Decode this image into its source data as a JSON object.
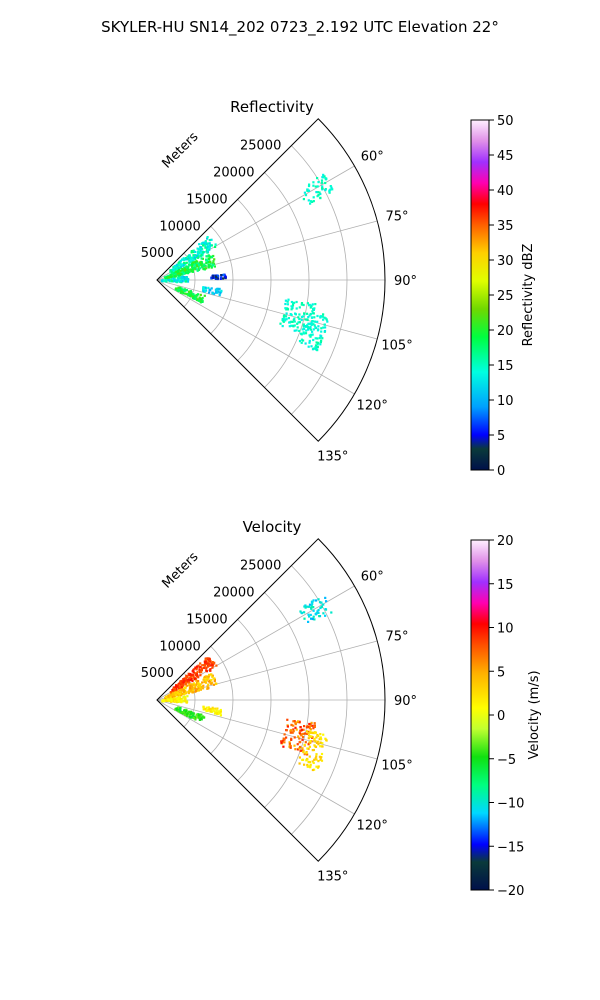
{
  "figure": {
    "title": "SKYLER-HU  SN14_202  0723_2.192 UTC Elevation 22°"
  },
  "chart_data": [
    {
      "type": "polar_sector",
      "title": "Reflectivity",
      "range_label": "Meters",
      "r_max": 30000,
      "r_ticks": [
        5000,
        10000,
        15000,
        20000,
        25000
      ],
      "r_tick_labels": [
        "5000",
        "10000",
        "15000",
        "20000",
        "25000"
      ],
      "theta_range_deg": [
        45,
        135
      ],
      "theta_ticks_deg": [
        60,
        75,
        90,
        105,
        120,
        135
      ],
      "theta_tick_labels": [
        "60°",
        "75°",
        "90°",
        "105°",
        "120°",
        "135°"
      ],
      "grid": true,
      "colorbar": {
        "label": "Reflectivity dBZ",
        "min": 0,
        "max": 50,
        "ticks": [
          0,
          5,
          10,
          15,
          20,
          25,
          30,
          35,
          40,
          45,
          50
        ],
        "tick_labels": [
          "0",
          "5",
          "10",
          "15",
          "20",
          "25",
          "30",
          "35",
          "40",
          "45",
          "50"
        ]
      },
      "echo_regions": [
        {
          "az": [
            48,
            60
          ],
          "range": [
            2000,
            9000
          ],
          "value": [
            11,
            18
          ]
        },
        {
          "az": [
            62,
            76
          ],
          "range": [
            1000,
            8000
          ],
          "value": [
            16,
            22
          ]
        },
        {
          "az": [
            80,
            93
          ],
          "range": [
            500,
            4000
          ],
          "value": [
            10,
            17
          ]
        },
        {
          "az": [
            84,
            88
          ],
          "range": [
            7000,
            9000
          ],
          "value": [
            3,
            8
          ]
        },
        {
          "az": [
            97,
            103
          ],
          "range": [
            6000,
            8500
          ],
          "value": [
            9,
            14
          ]
        },
        {
          "az": [
            107,
            117
          ],
          "range": [
            2500,
            6500
          ],
          "value": [
            17,
            22
          ]
        },
        {
          "az": [
            98,
            110
          ],
          "range": [
            17000,
            21000
          ],
          "value": [
            13,
            16
          ]
        },
        {
          "az": [
            57,
            63
          ],
          "range": [
            22000,
            26000
          ],
          "value": [
            13,
            16
          ]
        },
        {
          "az": [
            101,
            114
          ],
          "range": [
            20000,
            23000
          ],
          "value": [
            13,
            16
          ]
        }
      ]
    },
    {
      "type": "polar_sector",
      "title": "Velocity",
      "range_label": "Meters",
      "r_max": 30000,
      "r_ticks": [
        5000,
        10000,
        15000,
        20000,
        25000
      ],
      "r_tick_labels": [
        "5000",
        "10000",
        "15000",
        "20000",
        "25000"
      ],
      "theta_range_deg": [
        45,
        135
      ],
      "theta_ticks_deg": [
        60,
        75,
        90,
        105,
        120,
        135
      ],
      "theta_tick_labels": [
        "60°",
        "75°",
        "90°",
        "105°",
        "120°",
        "135°"
      ],
      "grid": true,
      "colorbar": {
        "label": "Velocity (m/s)",
        "min": -20,
        "max": 20,
        "ticks": [
          -20,
          -15,
          -10,
          -5,
          0,
          5,
          10,
          15,
          20
        ],
        "tick_labels": [
          "−20",
          "−15",
          "−10",
          "−5",
          "0",
          "5",
          "10",
          "15",
          "20"
        ]
      },
      "echo_regions": [
        {
          "az": [
            48,
            60
          ],
          "range": [
            2000,
            9000
          ],
          "value": [
            7,
            10
          ]
        },
        {
          "az": [
            62,
            76
          ],
          "range": [
            1000,
            8000
          ],
          "value": [
            2,
            6
          ]
        },
        {
          "az": [
            80,
            93
          ],
          "range": [
            500,
            4000
          ],
          "value": [
            -1,
            3
          ]
        },
        {
          "az": [
            97,
            103
          ],
          "range": [
            6000,
            8500
          ],
          "value": [
            0,
            3
          ]
        },
        {
          "az": [
            107,
            117
          ],
          "range": [
            2500,
            6500
          ],
          "value": [
            -6,
            -3
          ]
        },
        {
          "az": [
            98,
            110
          ],
          "range": [
            17000,
            21000
          ],
          "value": [
            4,
            10
          ]
        },
        {
          "az": [
            57,
            63
          ],
          "range": [
            22000,
            26000
          ],
          "value": [
            -12,
            -9
          ]
        },
        {
          "az": [
            101,
            114
          ],
          "range": [
            20000,
            23000
          ],
          "value": [
            1,
            4
          ]
        }
      ]
    }
  ]
}
